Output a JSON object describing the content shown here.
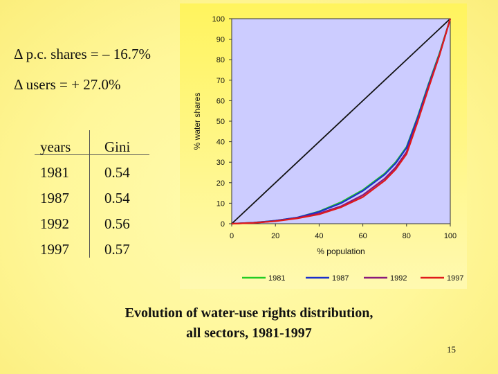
{
  "stats": {
    "shares_change": "Δ p.c. shares = – 16.7%",
    "users_change": "Δ users = + 27.0%"
  },
  "gini_table": {
    "headers": [
      "years",
      "Gini"
    ],
    "rows": [
      [
        "1981",
        "0.54"
      ],
      [
        "1987",
        "0.54"
      ],
      [
        "1992",
        "0.56"
      ],
      [
        "1997",
        "0.57"
      ]
    ]
  },
  "caption": {
    "line1": "Evolution of water-use rights distribution,",
    "line2": "all sectors, 1981-1997"
  },
  "page_number": "15",
  "chart_data": {
    "type": "line",
    "title": "",
    "xlabel": "% population",
    "ylabel": "% water shares",
    "xlim": [
      0,
      100
    ],
    "ylim": [
      0,
      100
    ],
    "xticks": [
      0,
      20,
      40,
      60,
      80,
      100
    ],
    "yticks": [
      0,
      10,
      20,
      30,
      40,
      50,
      60,
      70,
      80,
      90,
      100
    ],
    "grid": false,
    "legend_position": "bottom",
    "plot_background": "#ccccff",
    "x": [
      0,
      10,
      20,
      30,
      40,
      50,
      60,
      70,
      75,
      80,
      85,
      90,
      95,
      100
    ],
    "equality_line": {
      "x": [
        0,
        100
      ],
      "y": [
        0,
        100
      ],
      "color": "#111111"
    },
    "series": [
      {
        "name": "1981",
        "color": "#22cc22",
        "values": [
          0,
          0.5,
          1.5,
          3,
          6,
          10.5,
          16.5,
          24.5,
          30,
          37.5,
          52,
          68,
          83,
          100
        ]
      },
      {
        "name": "1987",
        "color": "#1a2fcc",
        "values": [
          0,
          0.5,
          1.5,
          3,
          5.8,
          10,
          16,
          24,
          29.5,
          37,
          51.5,
          67.5,
          82.5,
          100
        ]
      },
      {
        "name": "1992",
        "color": "#8a1a7a",
        "values": [
          0,
          0.4,
          1.3,
          2.8,
          5,
          8.5,
          14,
          22,
          27.5,
          35,
          50,
          66.5,
          82,
          100
        ]
      },
      {
        "name": "1997",
        "color": "#e01a1a",
        "values": [
          0,
          0.4,
          1.2,
          2.6,
          4.6,
          8,
          13,
          21,
          26.5,
          34,
          49.5,
          66,
          82,
          100
        ]
      }
    ]
  }
}
